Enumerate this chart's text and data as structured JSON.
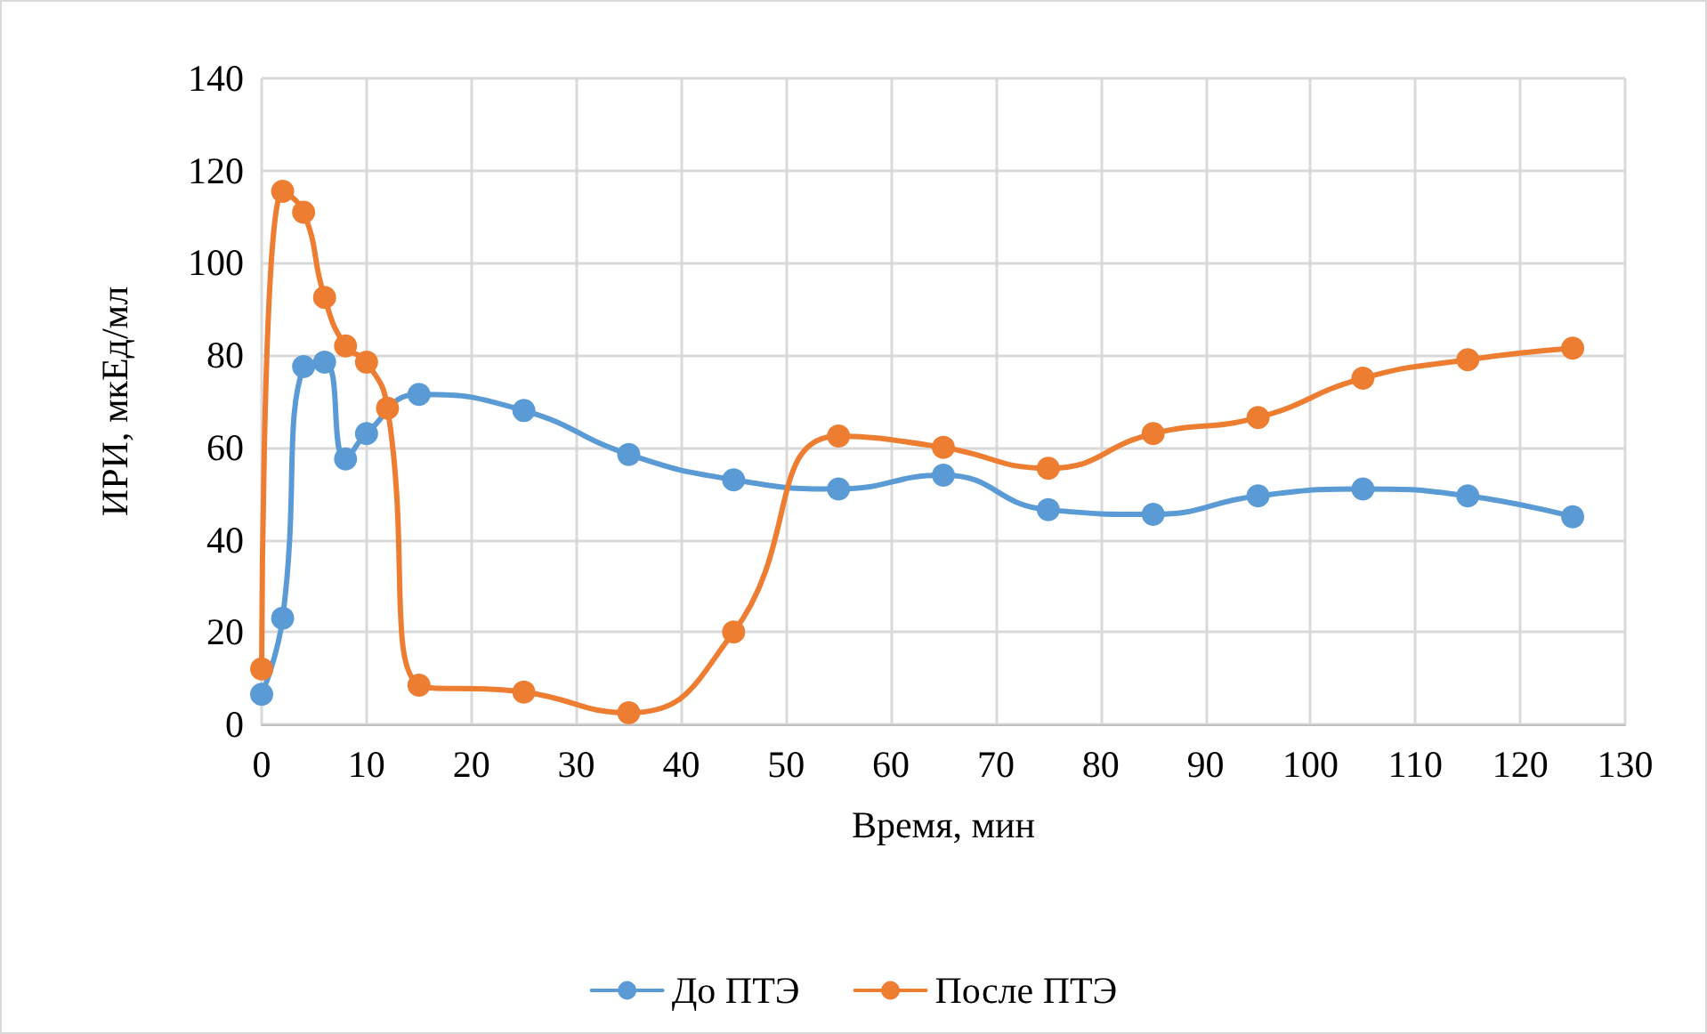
{
  "chart_data": {
    "type": "line",
    "xlabel": "Время, мин",
    "ylabel": "ИРИ, мкЕд/мл",
    "xlim": [
      0,
      130
    ],
    "xticks": [
      0,
      10,
      20,
      30,
      40,
      50,
      60,
      70,
      80,
      90,
      100,
      110,
      120,
      130
    ],
    "ylim": [
      0,
      140
    ],
    "yticks": [
      0,
      20,
      40,
      60,
      80,
      100,
      120,
      140
    ],
    "grid": true,
    "legend": "bottom",
    "marker": "circle",
    "line_style": "solid",
    "series": [
      {
        "name": "До ПТЭ",
        "color": "#5b9bd5",
        "x": [
          0,
          2,
          4,
          6,
          8,
          10,
          15,
          25,
          35,
          45,
          55,
          65,
          75,
          85,
          95,
          105,
          115,
          125
        ],
        "values": [
          6.5,
          23,
          77.5,
          78.5,
          57.5,
          63,
          71.5,
          68,
          58.5,
          53,
          51,
          54,
          46.5,
          45.5,
          49.5,
          51,
          49.5,
          45
        ]
      },
      {
        "name": "После ПТЭ",
        "color": "#ed7d31",
        "x": [
          0,
          2,
          4,
          6,
          8,
          10,
          12,
          15,
          25,
          35,
          45,
          55,
          65,
          75,
          85,
          95,
          105,
          115,
          125
        ],
        "values": [
          12,
          115.5,
          111,
          92.5,
          82,
          78.5,
          68.5,
          8.5,
          7,
          2.5,
          20,
          62.5,
          60,
          55.5,
          63,
          66.5,
          75,
          79,
          81.5
        ]
      }
    ]
  }
}
